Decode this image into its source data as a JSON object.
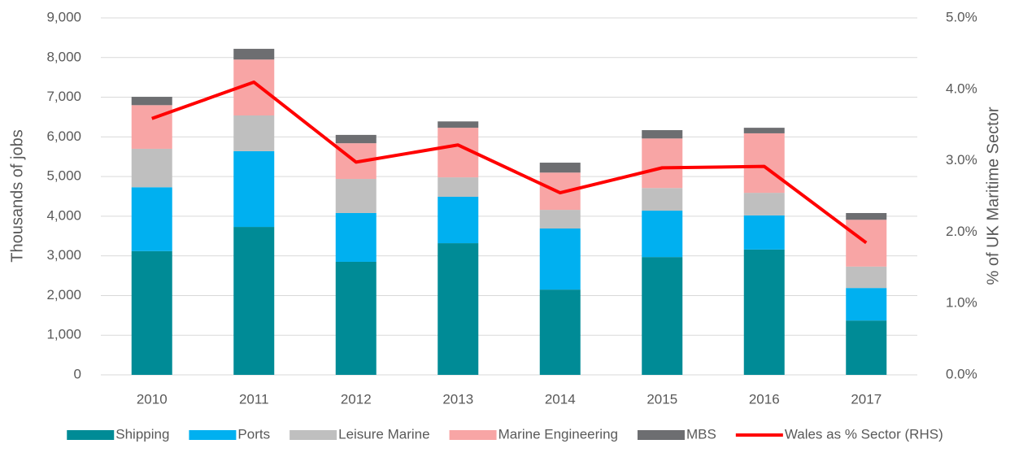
{
  "chart_data": {
    "type": "bar",
    "categories": [
      "2010",
      "2011",
      "2012",
      "2013",
      "2014",
      "2015",
      "2016",
      "2017"
    ],
    "ylabel": "Thousands of jobs",
    "y2label": "% of UK Maritime Sector",
    "ylim": [
      0,
      9000
    ],
    "yticks": [
      0,
      {
        "value": 1000,
        "label": "1,000"
      },
      {
        "value": 2000,
        "label": "2,000"
      },
      {
        "value": 3000,
        "label": "3,000"
      },
      {
        "value": 4000,
        "label": "4,000"
      },
      {
        "value": 5000,
        "label": "5,000"
      },
      {
        "value": 6000,
        "label": "6,000"
      },
      {
        "value": 7000,
        "label": "7,000"
      },
      {
        "value": 8000,
        "label": "8,000"
      },
      {
        "value": 9000,
        "label": "9,000"
      }
    ],
    "y2lim": [
      0,
      5
    ],
    "y2ticks": [
      {
        "value": 0,
        "label": "0.0%"
      },
      {
        "value": 1,
        "label": "1.0%"
      },
      {
        "value": 2,
        "label": "2.0%"
      },
      {
        "value": 3,
        "label": "3.0%"
      },
      {
        "value": 4,
        "label": "4.0%"
      },
      {
        "value": 5,
        "label": "5.0%"
      }
    ],
    "grid": true,
    "stacked": true,
    "legend": "bottom",
    "series": [
      {
        "name": "Shipping",
        "color": "#008b96",
        "values": [
          3120,
          3730,
          2850,
          3320,
          2150,
          2970,
          3160,
          1370
        ]
      },
      {
        "name": "Ports",
        "color": "#00b0f0",
        "values": [
          1610,
          1910,
          1230,
          1170,
          1540,
          1170,
          860,
          820
        ]
      },
      {
        "name": "Leisure Marine",
        "color": "#bfbfbf",
        "values": [
          970,
          900,
          860,
          490,
          470,
          570,
          570,
          540
        ]
      },
      {
        "name": "Marine Engineering",
        "color": "#f8a5a5",
        "values": [
          1100,
          1410,
          900,
          1250,
          940,
          1250,
          1500,
          1180
        ]
      },
      {
        "name": "MBS",
        "color": "#6d6e71",
        "values": [
          210,
          270,
          210,
          160,
          250,
          210,
          140,
          170
        ]
      },
      {
        "name": "Wales as % Sector (RHS)",
        "color": "#ff0000",
        "type": "line",
        "axis": "y2",
        "values": [
          3.59,
          4.1,
          2.98,
          3.22,
          2.55,
          2.9,
          2.92,
          1.85
        ]
      }
    ]
  }
}
